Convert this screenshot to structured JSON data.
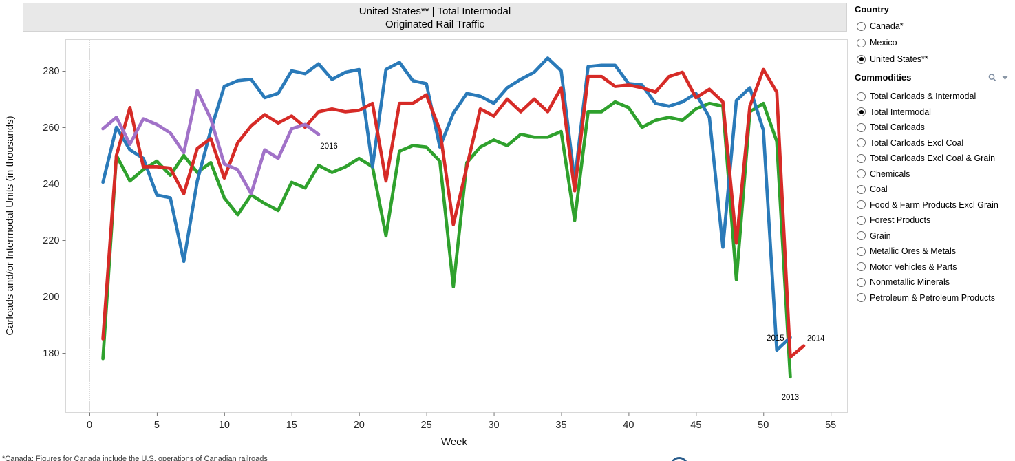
{
  "title": {
    "line1": "United States** | Total Intermodal",
    "line2": "Originated Rail Traffic"
  },
  "chart_data": {
    "type": "line",
    "title": "United States** | Total Intermodal — Originated Rail Traffic",
    "xlabel": "Week",
    "ylabel": "Carloads and/or Intermodal Units (in thousands)",
    "x_ticks": [
      0,
      5,
      10,
      15,
      20,
      25,
      30,
      35,
      40,
      45,
      50,
      55
    ],
    "y_ticks": [
      180,
      200,
      220,
      240,
      260,
      280
    ],
    "xlim": [
      -1.8,
      56.2
    ],
    "ylim": [
      159,
      291
    ],
    "grid": "none",
    "legend": "none",
    "zero_week_reference_line": "dotted",
    "series": [
      {
        "name": "2013",
        "color": "#2fa12d",
        "start_week": 1,
        "values": [
          178,
          250,
          241,
          245,
          248,
          243,
          250,
          244,
          247.5,
          235,
          229,
          236,
          233,
          230.5,
          240.5,
          238.5,
          246.5,
          244,
          246,
          249,
          246,
          221.5,
          251.5,
          253.5,
          253,
          248,
          203.5,
          247.5,
          253,
          255.5,
          253.5,
          257.5,
          256.5,
          256.5,
          258.5,
          227,
          265.5,
          265.5,
          269,
          267,
          260,
          262.5,
          263.5,
          262.5,
          266.5,
          268.5,
          267.5,
          206,
          265.5,
          268.5,
          255,
          171.5
        ]
      },
      {
        "name": "2015",
        "color": "#2a7ab9",
        "start_week": 1,
        "values": [
          240.5,
          260,
          252,
          249,
          236,
          235,
          212.5,
          241,
          259,
          274.5,
          276.5,
          277,
          270.5,
          272,
          280,
          279,
          282.5,
          277,
          279.5,
          280.5,
          246,
          280.5,
          283,
          276.5,
          275.5,
          253,
          265,
          272,
          271,
          268.5,
          274,
          277,
          279.5,
          284.5,
          280,
          241,
          281.5,
          282,
          282,
          275.5,
          275,
          268.5,
          267.5,
          269,
          272,
          263.5,
          217.5,
          269.5,
          274,
          259,
          181,
          185.5
        ]
      },
      {
        "name": "2014",
        "color": "#d62b27",
        "start_week": 1,
        "values": [
          185,
          250,
          267,
          246,
          246,
          245.5,
          236.5,
          252.5,
          256,
          242,
          254.5,
          260.5,
          264.5,
          261.5,
          264,
          260,
          265.5,
          266.5,
          265.5,
          266,
          268.5,
          241,
          268.5,
          268.5,
          271.5,
          259,
          225.5,
          246,
          266.5,
          264,
          270,
          265.5,
          270,
          265.5,
          274,
          237.5,
          278,
          278,
          274.5,
          275,
          274,
          272.5,
          278,
          279.5,
          270.5,
          273.5,
          269,
          219,
          267.5,
          280.5,
          272.5,
          178.5,
          182.5
        ]
      },
      {
        "name": "2016",
        "color": "#a172c8",
        "start_week": 1,
        "values": [
          259.5,
          263.5,
          254,
          263,
          261,
          258,
          251,
          273,
          263,
          247,
          245,
          236.5,
          252,
          249,
          259.5,
          261,
          257.5
        ]
      }
    ],
    "annotations": [
      {
        "text": "2016",
        "week": 17.77,
        "value": 253.4
      },
      {
        "text": "2015",
        "week": 50.9,
        "value": 185.4
      },
      {
        "text": "2014",
        "week": 53.9,
        "value": 185.2
      },
      {
        "text": "2013",
        "week": 52.0,
        "value": 164.4
      }
    ]
  },
  "filters": {
    "country": {
      "label": "Country",
      "selected": "United States**",
      "options": [
        "Canada*",
        "Mexico",
        "United States**"
      ]
    },
    "commodities": {
      "label": "Commodities",
      "selected": "Total Intermodal",
      "options": [
        "Total Carloads & Intermodal",
        "Total Intermodal",
        "Total Carloads",
        "Total Carloads Excl Coal",
        "Total Carloads Excl Coal & Grain",
        "Chemicals",
        "Coal",
        "Food & Farm Products Excl Grain",
        "Forest Products",
        "Grain",
        "Metallic Ores & Metals",
        "Motor Vehicles & Parts",
        "Nonmetallic Minerals",
        "Petroleum & Petroleum Products"
      ]
    }
  },
  "footnote": "*Canada: Figures for Canada include the U.S. operations of Canadian railroads"
}
